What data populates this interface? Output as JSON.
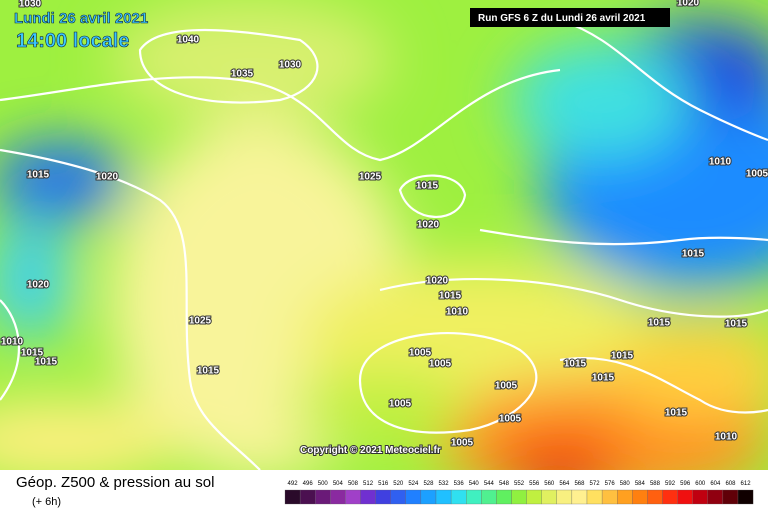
{
  "header": {
    "date": "Lundi 26 avril 2021",
    "time": "14:00 locale",
    "run": "Run GFS 6 Z du Lundi 26 avril 2021",
    "copyright": "Copyright © 2021 Meteociel.fr"
  },
  "footer": {
    "title": "Géop. Z500 & pression au sol",
    "step": "(+ 6h)"
  },
  "isobar_labels": [
    1030,
    1040,
    1035,
    1030,
    1015,
    1020,
    1020,
    1025,
    1015,
    1010,
    1015,
    1015,
    1025,
    1015,
    1020,
    1020,
    1015,
    1010,
    1005,
    1005,
    1005,
    1005,
    1005,
    1005,
    1015,
    1015,
    1015,
    1015,
    1015,
    1015,
    1010,
    1005,
    1020,
    1015,
    1010
  ],
  "scale": {
    "values": [
      492,
      496,
      500,
      504,
      508,
      512,
      516,
      520,
      524,
      528,
      532,
      536,
      540,
      544,
      548,
      552,
      556,
      560,
      564,
      568,
      572,
      576,
      580,
      584,
      588,
      592,
      596,
      600,
      604,
      608,
      612
    ],
    "colors": [
      "#2a0a2a",
      "#4b1050",
      "#6a1a78",
      "#8a2aa0",
      "#a040c8",
      "#7030d0",
      "#4040e0",
      "#3060f0",
      "#2080ff",
      "#1ca0ff",
      "#20c0ff",
      "#30e0f0",
      "#40f0c0",
      "#50f090",
      "#60f060",
      "#90f040",
      "#c0f040",
      "#e0f060",
      "#f8f080",
      "#fff090",
      "#ffe060",
      "#ffc040",
      "#ffa020",
      "#ff8010",
      "#ff6010",
      "#ff3010",
      "#f01010",
      "#c00010",
      "#900010",
      "#600008",
      "#100000"
    ]
  }
}
